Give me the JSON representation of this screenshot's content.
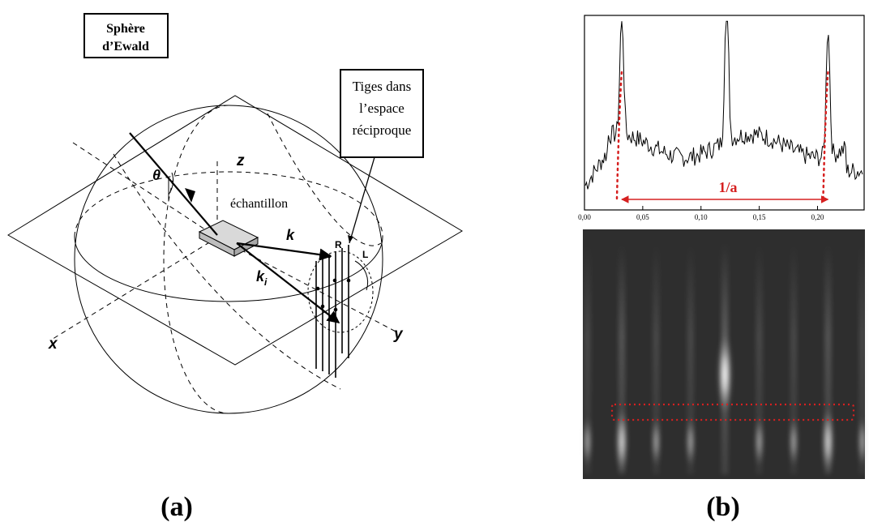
{
  "panel_a": {
    "label": "(a)",
    "ewald_box_line1": "Sphère",
    "ewald_box_line2": "d’Ewald",
    "rods_box_line1": "Tiges dans",
    "rods_box_line2": "l’espace",
    "rods_box_line3": "réciproque",
    "sample_label": "échantillon",
    "axis_z": "z",
    "axis_x": "x",
    "axis_y": "y",
    "theta": "θ",
    "k_label": "k",
    "ki_label": "k",
    "ki_subscript": "i",
    "R_label": "R",
    "L_label": "L"
  },
  "panel_b": {
    "label": "(b)",
    "period_label": "1/a",
    "accent_color": "#d62020",
    "profile_color": "#000000",
    "pattern_background": "#2e2e2e"
  },
  "chart_data": {
    "type": "line",
    "xlim": [
      0.0,
      0.24
    ],
    "x_ticks": [
      "0,00",
      "0,05",
      "0,10",
      "0,15",
      "0,20"
    ],
    "x_tick_values": [
      0.0,
      0.05,
      0.1,
      0.15,
      0.2
    ],
    "series": [
      {
        "peaks": [
          {
            "x": 0.032,
            "relative_height": 0.78
          },
          {
            "x": 0.122,
            "relative_height": 1.0
          },
          {
            "x": 0.209,
            "relative_height": 0.82
          }
        ]
      }
    ],
    "annotations": [
      {
        "text": "1/a",
        "from_x": 0.032,
        "to_x": 0.209
      }
    ]
  }
}
